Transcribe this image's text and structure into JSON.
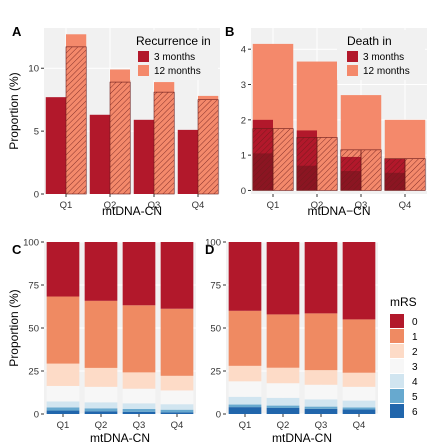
{
  "chart_data": [
    {
      "panel": "A",
      "type": "bar",
      "categories": [
        "Q1",
        "Q2",
        "Q3",
        "Q4"
      ],
      "xlabel": "mtDNA-CN",
      "ylabel": "Proportion (%)",
      "ylim": [
        0,
        13.2
      ],
      "yticks": [
        0,
        5,
        10
      ],
      "legend": {
        "title": "Recurrence in",
        "placement": "top-right",
        "entries": [
          "3 months",
          "12 months"
        ]
      },
      "series": [
        {
          "name": "3 months",
          "values": [
            7.7,
            6.3,
            5.9,
            5.1
          ],
          "color": "#b2182b"
        },
        {
          "name": "12 months",
          "values": [
            12.7,
            9.9,
            8.9,
            7.8
          ],
          "color": "#f4896b"
        }
      ],
      "hatched_values": [
        11.7,
        8.9,
        8.1,
        7.5
      ]
    },
    {
      "panel": "B",
      "type": "bar",
      "categories": [
        "Q1",
        "Q2",
        "Q3",
        "Q4"
      ],
      "xlabel": "mtDNA−CN",
      "ylabel": "",
      "ylim": [
        -0.1,
        4.6
      ],
      "yticks": [
        0,
        1,
        2,
        3,
        4
      ],
      "legend": {
        "title": "Death in",
        "placement": "top-right",
        "entries": [
          "3 months",
          "12 months"
        ]
      },
      "series": [
        {
          "name": "3 months",
          "values": [
            2.0,
            1.7,
            0.95,
            0.9
          ],
          "color": "#b2182b"
        },
        {
          "name": "12 months",
          "values": [
            4.15,
            3.65,
            2.7,
            2.0
          ],
          "color": "#f4896b"
        }
      ],
      "hatched_values": [
        1.75,
        1.5,
        1.15,
        0.9
      ],
      "inner_values": [
        1.05,
        0.7,
        0.55,
        0.5
      ]
    },
    {
      "panel": "C",
      "type": "bar",
      "stacked": true,
      "categories": [
        "Q1",
        "Q2",
        "Q3",
        "Q4"
      ],
      "xlabel": "mtDNA-CN",
      "ylabel": "Proportion (%)",
      "ylim": [
        0,
        100
      ],
      "yticks": [
        0,
        25,
        50,
        75,
        100
      ],
      "series": [
        {
          "name": "6",
          "values": [
            2.0,
            1.6,
            1.3,
            1.0
          ]
        },
        {
          "name": "5",
          "values": [
            1.8,
            1.7,
            1.6,
            1.5
          ]
        },
        {
          "name": "4",
          "values": [
            3.5,
            3.5,
            3.3,
            3.2
          ]
        },
        {
          "name": "3",
          "values": [
            9.0,
            9.0,
            8.5,
            8.0
          ]
        },
        {
          "name": "2",
          "values": [
            13.0,
            11.0,
            9.5,
            8.5
          ]
        },
        {
          "name": "1",
          "values": [
            39.0,
            39.0,
            39.0,
            39.0
          ]
        },
        {
          "name": "0",
          "values": [
            31.7,
            34.2,
            36.8,
            38.8
          ]
        }
      ]
    },
    {
      "panel": "D",
      "type": "bar",
      "stacked": true,
      "categories": [
        "Q1",
        "Q2",
        "Q3",
        "Q4"
      ],
      "xlabel": "mtDNA-CN",
      "ylabel": "",
      "ylim": [
        0,
        100
      ],
      "yticks": [
        0,
        25,
        50,
        75,
        100
      ],
      "legend": {
        "title": "mRS",
        "placement": "right",
        "entries": [
          "0",
          "1",
          "2",
          "3",
          "4",
          "5",
          "6"
        ]
      },
      "series": [
        {
          "name": "6",
          "values": [
            4.0,
            3.5,
            3.0,
            2.6
          ]
        },
        {
          "name": "5",
          "values": [
            1.5,
            1.4,
            1.3,
            1.2
          ]
        },
        {
          "name": "4",
          "values": [
            4.5,
            4.5,
            4.2,
            4.0
          ]
        },
        {
          "name": "3",
          "values": [
            9.0,
            8.5,
            8.5,
            8.0
          ]
        },
        {
          "name": "2",
          "values": [
            9.0,
            9.0,
            8.5,
            8.2
          ]
        },
        {
          "name": "1",
          "values": [
            32.0,
            31.0,
            33.0,
            31.0
          ]
        },
        {
          "name": "0",
          "values": [
            40.0,
            42.1,
            41.5,
            45.0
          ]
        }
      ]
    }
  ],
  "mrs_colors": {
    "0": "#b2182b",
    "1": "#ef8a62",
    "2": "#fddbc7",
    "3": "#f7f7f7",
    "4": "#d1e5f0",
    "5": "#67a9cf",
    "6": "#2166ac"
  },
  "background_color": "#f1f1f1",
  "grid_color": "#ffffff"
}
